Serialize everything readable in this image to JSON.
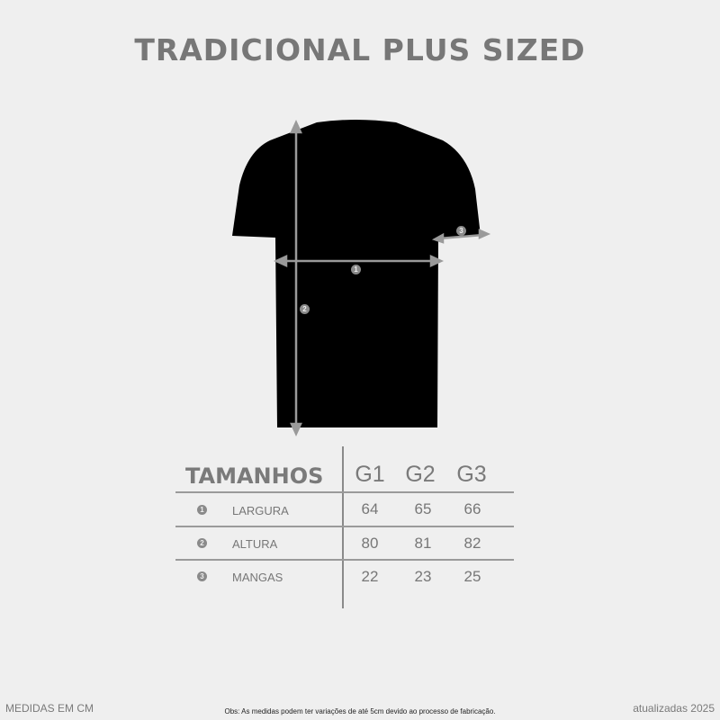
{
  "title": "TRADICIONAL PLUS SIZED",
  "diagram": {
    "markers": [
      "1",
      "2",
      "3"
    ],
    "garment_color": "#000000",
    "arrow_color": "#9a9a9a"
  },
  "table": {
    "header": "TAMANHOS",
    "sizes": [
      "G1",
      "G2",
      "G3"
    ],
    "rows": [
      {
        "marker": "1",
        "label": "LARGURA",
        "values": [
          "64",
          "65",
          "66"
        ]
      },
      {
        "marker": "2",
        "label": "ALTURA",
        "values": [
          "80",
          "81",
          "82"
        ]
      },
      {
        "marker": "3",
        "label": "MANGAS",
        "values": [
          "22",
          "23",
          "25"
        ]
      }
    ]
  },
  "footer": {
    "units": "MEDIDAS EM CM",
    "note": "Obs: As medidas podem ter variações de até 5cm devido ao processo de fabricação.",
    "updated": "atualizadas 2025"
  }
}
